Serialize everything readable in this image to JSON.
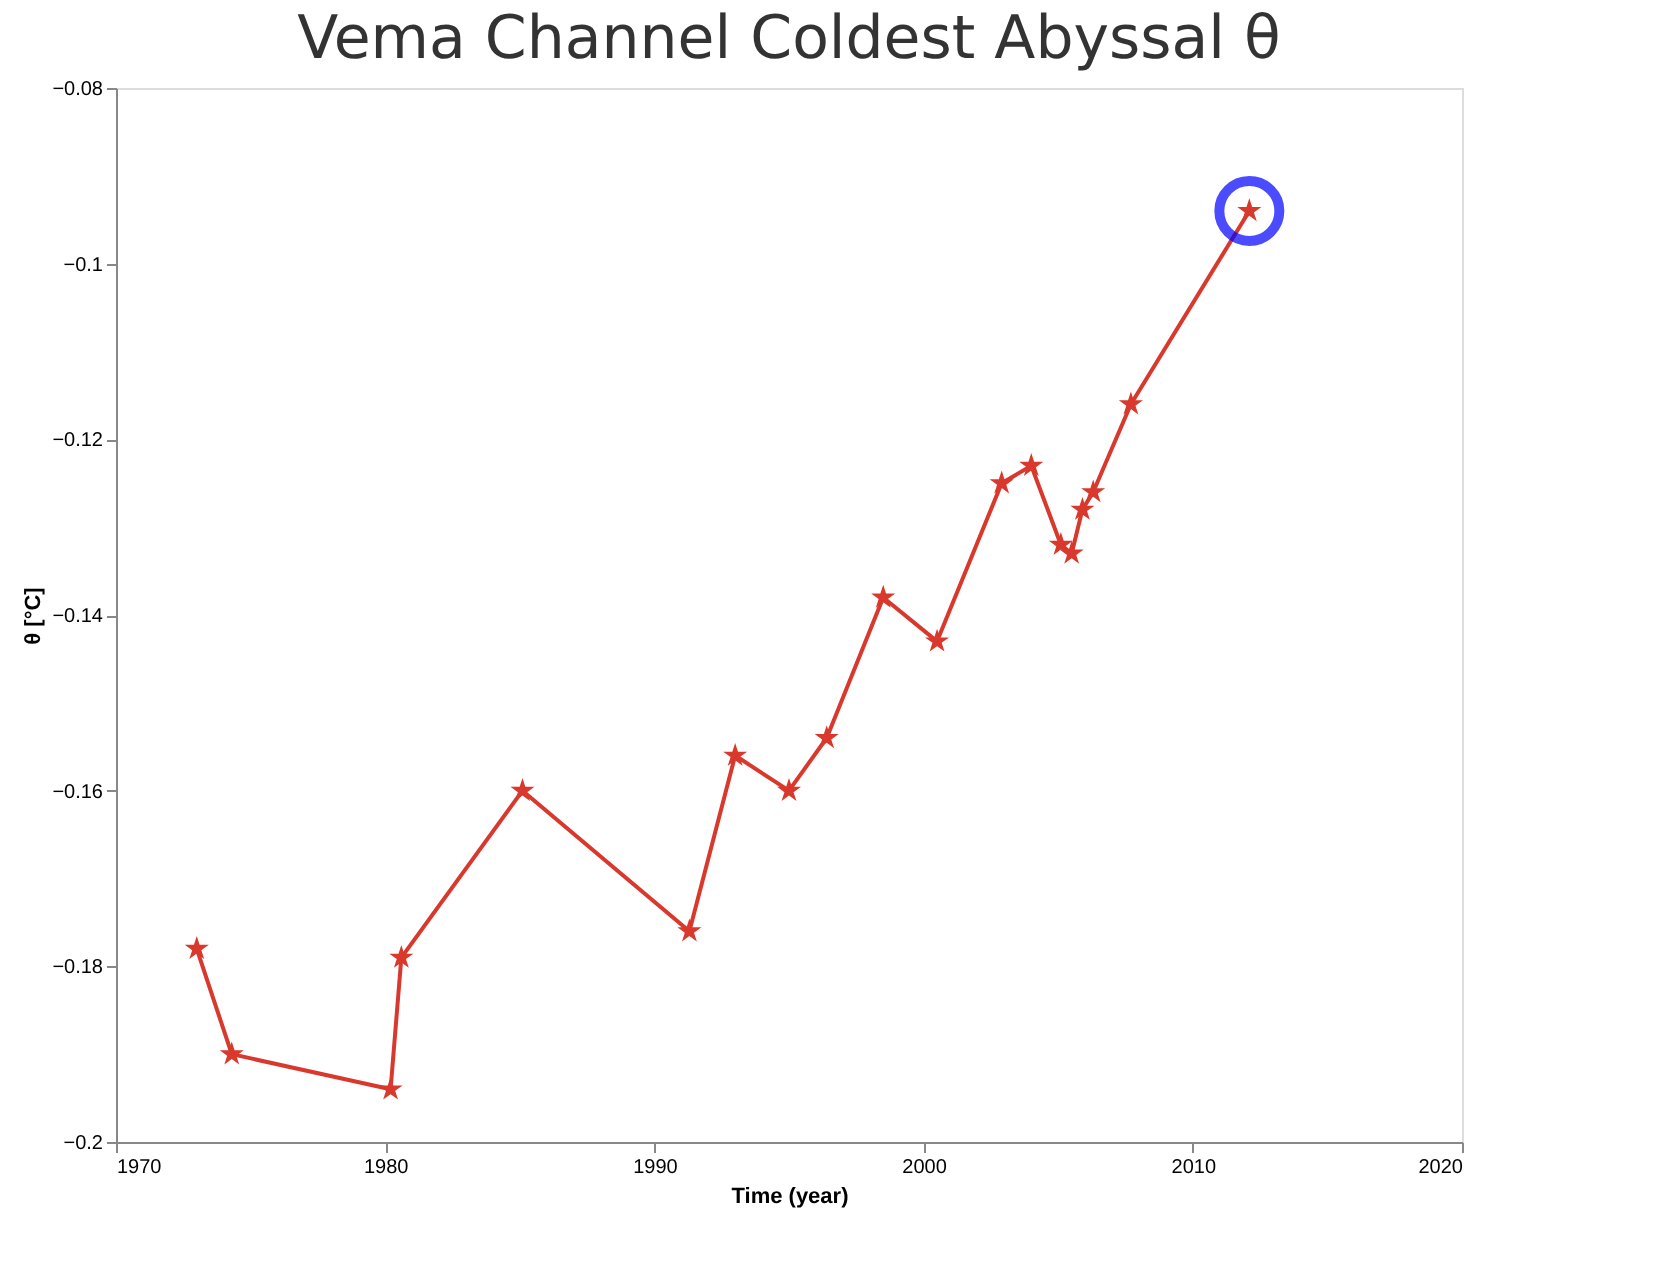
{
  "chart_data": {
    "type": "line",
    "title": "Vema Channel Coldest Abyssal θ",
    "xlabel": "Time (year)",
    "ylabel": "θ [°C]",
    "xlim": [
      1970,
      2020
    ],
    "xticks": [
      1970,
      1980,
      1990,
      2000,
      2010,
      2020
    ],
    "ylim": [
      -0.2,
      -0.08
    ],
    "yticks": [
      -0.2,
      -0.18,
      -0.16,
      -0.14,
      -0.12,
      -0.1,
      -0.08
    ],
    "grid": false,
    "series": [
      {
        "color": "#d9382c",
        "marker": "star",
        "line_style": "solid",
        "x": [
          1973.0,
          1974.3,
          1980.2,
          1980.6,
          1985.1,
          1991.3,
          1993.0,
          1995.0,
          1996.4,
          1998.5,
          2000.5,
          2002.9,
          2004.0,
          2005.1,
          2005.5,
          2005.9,
          2006.3,
          2007.7,
          2012.1
        ],
        "values": [
          -0.178,
          -0.19,
          -0.194,
          -0.179,
          -0.16,
          -0.176,
          -0.156,
          -0.16,
          -0.154,
          -0.138,
          -0.143,
          -0.125,
          -0.123,
          -0.132,
          -0.133,
          -0.128,
          -0.126,
          -0.116,
          -0.094
        ]
      },
      {
        "type": "scatter",
        "color": "#0000ff",
        "marker": "circle",
        "x": [
          2012.1
        ],
        "values": [
          -0.094
        ]
      }
    ]
  }
}
